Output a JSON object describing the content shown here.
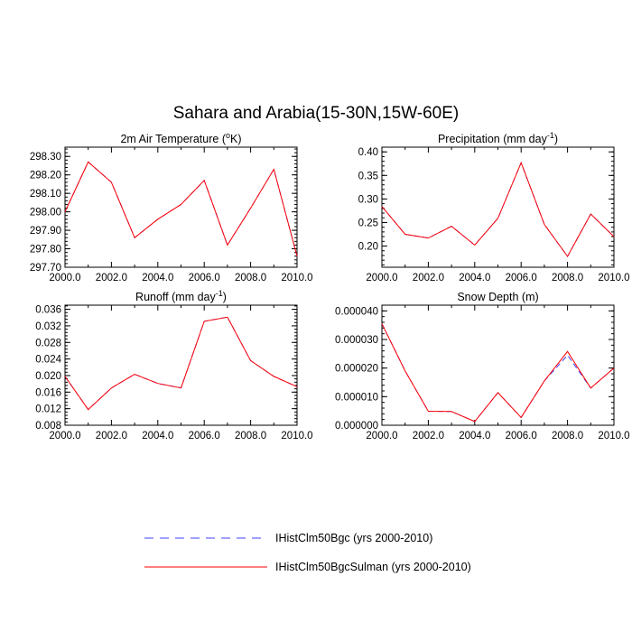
{
  "title": "Sahara and Arabia(15-30N,15W-60E)",
  "legend": [
    {
      "label": "IHistClm50Bgc (yrs 2000-2010)",
      "color": "#4040ff",
      "dash": true
    },
    {
      "label": "IHistClm50BgcSulman (yrs 2000-2010)",
      "color": "#ff0000",
      "dash": false
    }
  ],
  "chart_data": [
    {
      "type": "line",
      "title": "2m Air Temperature",
      "title_unit": "(°K)",
      "x": [
        2000,
        2001,
        2002,
        2003,
        2004,
        2005,
        2006,
        2007,
        2008,
        2009,
        2010
      ],
      "xlim": [
        2000,
        2010
      ],
      "xticks": [
        "2000.0",
        "2002.0",
        "2004.0",
        "2006.0",
        "2008.0",
        "2010.0"
      ],
      "ylim": [
        297.7,
        298.35
      ],
      "yticks": [
        "297.70",
        "297.80",
        "297.90",
        "298.00",
        "298.10",
        "298.20",
        "298.30"
      ],
      "series": [
        {
          "name": "IHistClm50Bgc (yrs 2000-2010)",
          "values": [
            298.0,
            298.27,
            298.16,
            297.86,
            297.96,
            298.04,
            298.17,
            297.82,
            298.02,
            298.23,
            297.76
          ]
        },
        {
          "name": "IHistClm50BgcSulman (yrs 2000-2010)",
          "values": [
            298.0,
            298.27,
            298.16,
            297.86,
            297.96,
            298.04,
            298.17,
            297.82,
            298.02,
            298.23,
            297.76
          ]
        }
      ]
    },
    {
      "type": "line",
      "title": "Precipitation",
      "title_unit": "(mm day-1)",
      "x": [
        2000,
        2001,
        2002,
        2003,
        2004,
        2005,
        2006,
        2007,
        2008,
        2009,
        2010
      ],
      "xlim": [
        2000,
        2010
      ],
      "xticks": [
        "2000.0",
        "2002.0",
        "2004.0",
        "2006.0",
        "2008.0",
        "2010.0"
      ],
      "ylim": [
        0.155,
        0.41
      ],
      "yticks": [
        "0.20",
        "0.25",
        "0.30",
        "0.35",
        "0.40"
      ],
      "series": [
        {
          "name": "IHistClm50Bgc (yrs 2000-2010)",
          "values": [
            0.284,
            0.225,
            0.217,
            0.242,
            0.202,
            0.259,
            0.377,
            0.246,
            0.178,
            0.268,
            0.22
          ]
        },
        {
          "name": "IHistClm50BgcSulman (yrs 2000-2010)",
          "values": [
            0.284,
            0.225,
            0.217,
            0.242,
            0.202,
            0.259,
            0.377,
            0.246,
            0.178,
            0.268,
            0.22
          ]
        }
      ]
    },
    {
      "type": "line",
      "title": "Runoff",
      "title_unit": "(mm day-1)",
      "x": [
        2000,
        2001,
        2002,
        2003,
        2004,
        2005,
        2006,
        2007,
        2008,
        2009,
        2010
      ],
      "xlim": [
        2000,
        2010
      ],
      "xticks": [
        "2000.0",
        "2002.0",
        "2004.0",
        "2006.0",
        "2008.0",
        "2010.0"
      ],
      "ylim": [
        0.008,
        0.037
      ],
      "yticks": [
        "0.008",
        "0.012",
        "0.016",
        "0.020",
        "0.024",
        "0.028",
        "0.032",
        "0.036"
      ],
      "series": [
        {
          "name": "IHistClm50Bgc (yrs 2000-2010)",
          "values": [
            0.0198,
            0.0118,
            0.017,
            0.0203,
            0.0181,
            0.017,
            0.0331,
            0.0341,
            0.0236,
            0.0198,
            0.0173
          ]
        },
        {
          "name": "IHistClm50BgcSulman (yrs 2000-2010)",
          "values": [
            0.0198,
            0.0118,
            0.017,
            0.0203,
            0.0181,
            0.017,
            0.0331,
            0.0341,
            0.0236,
            0.0198,
            0.0173
          ]
        }
      ]
    },
    {
      "type": "line",
      "title": "Snow Depth",
      "title_unit": "(m)",
      "x": [
        2000,
        2001,
        2002,
        2003,
        2004,
        2005,
        2006,
        2007,
        2008,
        2009,
        2010
      ],
      "xlim": [
        2000,
        2010
      ],
      "xticks": [
        "2000.0",
        "2002.0",
        "2004.0",
        "2006.0",
        "2008.0",
        "2010.0"
      ],
      "ylim": [
        0.0,
        4.2e-05
      ],
      "yticks": [
        "0.000000",
        "0.000010",
        "0.000020",
        "0.000030",
        "0.000040"
      ],
      "series": [
        {
          "name": "IHistClm50Bgc (yrs 2000-2010)",
          "values": [
            3.55e-05,
            1.9e-05,
            4.9e-06,
            4.8e-06,
            1.3e-06,
            1.14e-05,
            2.7e-06,
            1.55e-05,
            2.45e-05,
            1.3e-05,
            2e-05
          ]
        },
        {
          "name": "IHistClm50BgcSulman (yrs 2000-2010)",
          "values": [
            3.55e-05,
            1.9e-05,
            4.9e-06,
            4.8e-06,
            1.3e-06,
            1.14e-05,
            2.7e-06,
            1.55e-05,
            2.58e-05,
            1.3e-05,
            2e-05
          ]
        }
      ]
    }
  ]
}
